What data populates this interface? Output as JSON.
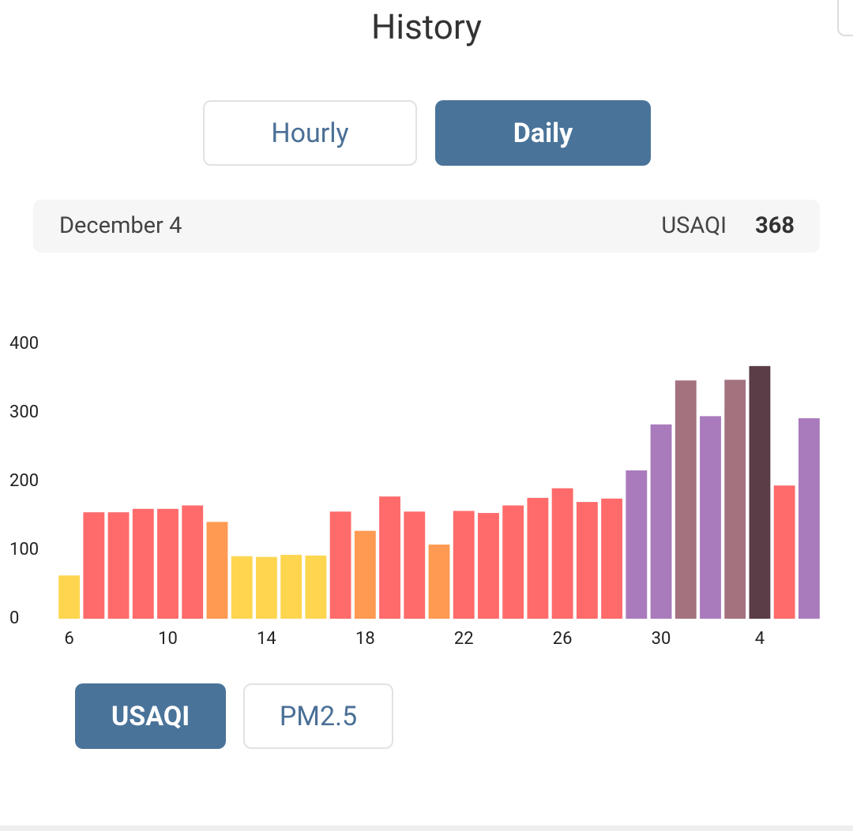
{
  "header": {
    "title": "History"
  },
  "period_tabs": [
    "Hourly",
    "Daily"
  ],
  "selection": {
    "date": "December 4",
    "metric": "USAQI"
  },
  "metric_tabs": [
    "USAQI",
    "PM2.5"
  ],
  "chart_data": {
    "type": "bar",
    "categories": [
      "6",
      null,
      null,
      null,
      "10",
      null,
      null,
      null,
      "14",
      null,
      null,
      null,
      "18",
      null,
      null,
      null,
      "22",
      null,
      null,
      null,
      "26",
      null,
      null,
      null,
      "30",
      null,
      null,
      null,
      "4",
      null,
      null
    ],
    "values": [
      63,
      155,
      155,
      160,
      160,
      165,
      141,
      91,
      90,
      93,
      92,
      156,
      128,
      178,
      156,
      108,
      157,
      154,
      165,
      176,
      190,
      170,
      175,
      216,
      283,
      347,
      295,
      348,
      368,
      194,
      292
    ],
    "colors": [
      "#fdd54f",
      "#ff6b6b",
      "#ff6b6b",
      "#ff6b6b",
      "#ff6b6b",
      "#ff6b6b",
      "#ff9a52",
      "#fdd54f",
      "#fdd54f",
      "#fdd54f",
      "#fdd54f",
      "#ff6b6b",
      "#ff9a52",
      "#ff6b6b",
      "#ff6b6b",
      "#ff9a52",
      "#ff6b6b",
      "#ff6b6b",
      "#ff6b6b",
      "#ff6b6b",
      "#ff6b6b",
      "#ff6b6b",
      "#ff6b6b",
      "#a97abc",
      "#a97abc",
      "#a4727f",
      "#a97abc",
      "#a4727f",
      "#5a3d46",
      "#ff6b6b",
      "#a97abc"
    ],
    "ylim": [
      0,
      400
    ],
    "yticks": [
      0,
      100,
      200,
      300,
      400
    ],
    "grid": false
  }
}
